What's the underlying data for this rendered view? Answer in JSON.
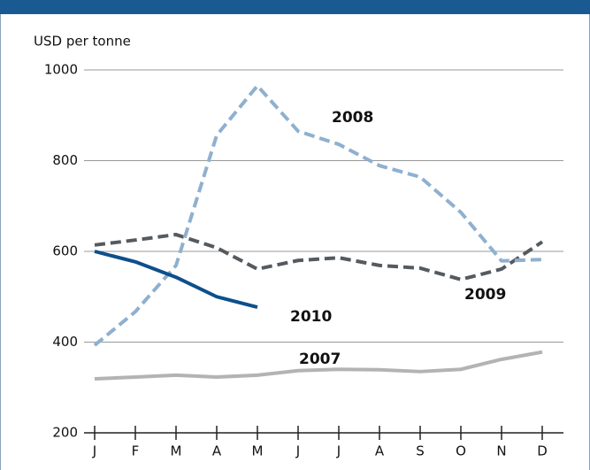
{
  "chart_data": {
    "type": "line",
    "y_axis_label": "USD per tonne",
    "categories": [
      "J",
      "F",
      "M",
      "A",
      "M",
      "J",
      "J",
      "A",
      "S",
      "O",
      "N",
      "D"
    ],
    "ylim": [
      200,
      1000
    ],
    "yticks": [
      200,
      400,
      600,
      800,
      1000
    ],
    "grid": true,
    "series": [
      {
        "name": "2007",
        "color": "#b3b3b3",
        "style": "solid",
        "values": [
          319,
          323,
          327,
          323,
          327,
          337,
          340,
          339,
          335,
          340,
          362,
          378
        ]
      },
      {
        "name": "2008",
        "color": "#8fb0cf",
        "style": "dashed",
        "values": [
          393,
          467,
          569,
          856,
          965,
          865,
          836,
          789,
          764,
          686,
          579,
          582
        ]
      },
      {
        "name": "2009",
        "color": "#555a5f",
        "style": "dashed",
        "values": [
          614,
          625,
          637,
          608,
          561,
          580,
          586,
          569,
          563,
          538,
          561,
          621
        ]
      },
      {
        "name": "2010",
        "color": "#0d4f8b",
        "style": "solid",
        "values": [
          600,
          577,
          543,
          500,
          477,
          null,
          null,
          null,
          null,
          null,
          null,
          null
        ]
      }
    ]
  }
}
